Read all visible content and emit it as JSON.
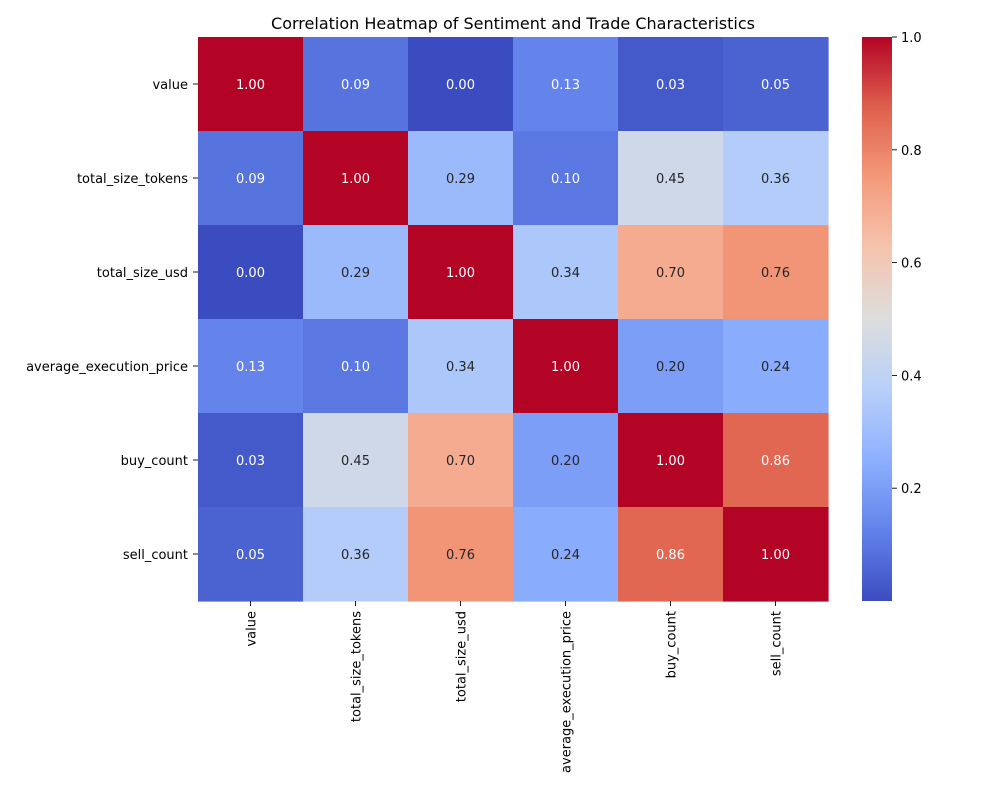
{
  "chart_data": {
    "type": "heatmap",
    "title": "Correlation Heatmap of Sentiment and Trade Characteristics",
    "rows": [
      "value",
      "total_size_tokens",
      "total_size_usd",
      "average_execution_price",
      "buy_count",
      "sell_count"
    ],
    "columns": [
      "value",
      "total_size_tokens",
      "total_size_usd",
      "average_execution_price",
      "buy_count",
      "sell_count"
    ],
    "values": [
      [
        1.0,
        0.09,
        0.0,
        0.13,
        0.03,
        0.05
      ],
      [
        0.09,
        1.0,
        0.29,
        0.1,
        0.45,
        0.36
      ],
      [
        0.0,
        0.29,
        1.0,
        0.34,
        0.7,
        0.76
      ],
      [
        0.13,
        0.1,
        0.34,
        1.0,
        0.2,
        0.24
      ],
      [
        0.03,
        0.45,
        0.7,
        0.2,
        1.0,
        0.86
      ],
      [
        0.05,
        0.36,
        0.76,
        0.24,
        0.86,
        1.0
      ]
    ],
    "value_format": "2 decimals",
    "colormap": "coolwarm",
    "colorbar": {
      "min": 0.0,
      "max": 1.0,
      "ticks": [
        0.2,
        0.4,
        0.6,
        0.8,
        1.0
      ],
      "tick_labels": [
        "0.2",
        "0.4",
        "0.6",
        "0.8",
        "1.0"
      ]
    },
    "xlabel": "",
    "ylabel": "",
    "grid": false
  }
}
